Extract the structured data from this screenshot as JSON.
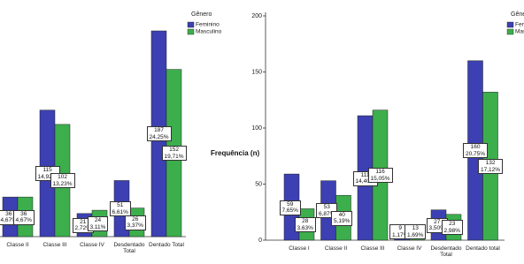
{
  "chart_data": [
    {
      "type": "bar",
      "legend_title": "Gênero",
      "categories": [
        "Classe II",
        "Classe III",
        "Classe IV",
        "Desdentado Total",
        "Dentado Total"
      ],
      "series": [
        {
          "name": "Feminino",
          "color": "#3c40b2",
          "values": [
            36,
            115,
            21,
            51,
            187
          ],
          "percent_labels": [
            "4,67%",
            "14,92%",
            "2,72%",
            "6,61%",
            "24,25%"
          ]
        },
        {
          "name": "Masculino",
          "color": "#3cae4c",
          "values": [
            36,
            102,
            24,
            26,
            152
          ],
          "percent_labels": [
            "4,67%",
            "13,23%",
            "3,11%",
            "3,37%",
            "19,71%"
          ]
        }
      ],
      "ylim": [
        0,
        200
      ]
    },
    {
      "type": "bar",
      "legend_title": "Gênero",
      "y_label": "Frequência (n)",
      "categories": [
        "Classe I",
        "Classe II",
        "Classe III",
        "Classe IV",
        "Desdentado Total",
        "Dentado total"
      ],
      "series": [
        {
          "name": "Feminino",
          "color": "#3c40b2",
          "values": [
            59,
            53,
            111,
            9,
            27,
            160
          ],
          "percent_labels": [
            "7,65%",
            "6,87%",
            "14,40%",
            "1,17%",
            "3,50%",
            "20,75%"
          ]
        },
        {
          "name": "Masculino",
          "color": "#3cae4c",
          "values": [
            28,
            40,
            116,
            13,
            23,
            132
          ],
          "percent_labels": [
            "3,63%",
            "5,19%",
            "15,05%",
            "1,69%",
            "2,98%",
            "17,12%"
          ]
        }
      ],
      "ylim": [
        0,
        200
      ],
      "yticks": [
        0,
        50,
        100,
        150,
        200
      ]
    }
  ]
}
